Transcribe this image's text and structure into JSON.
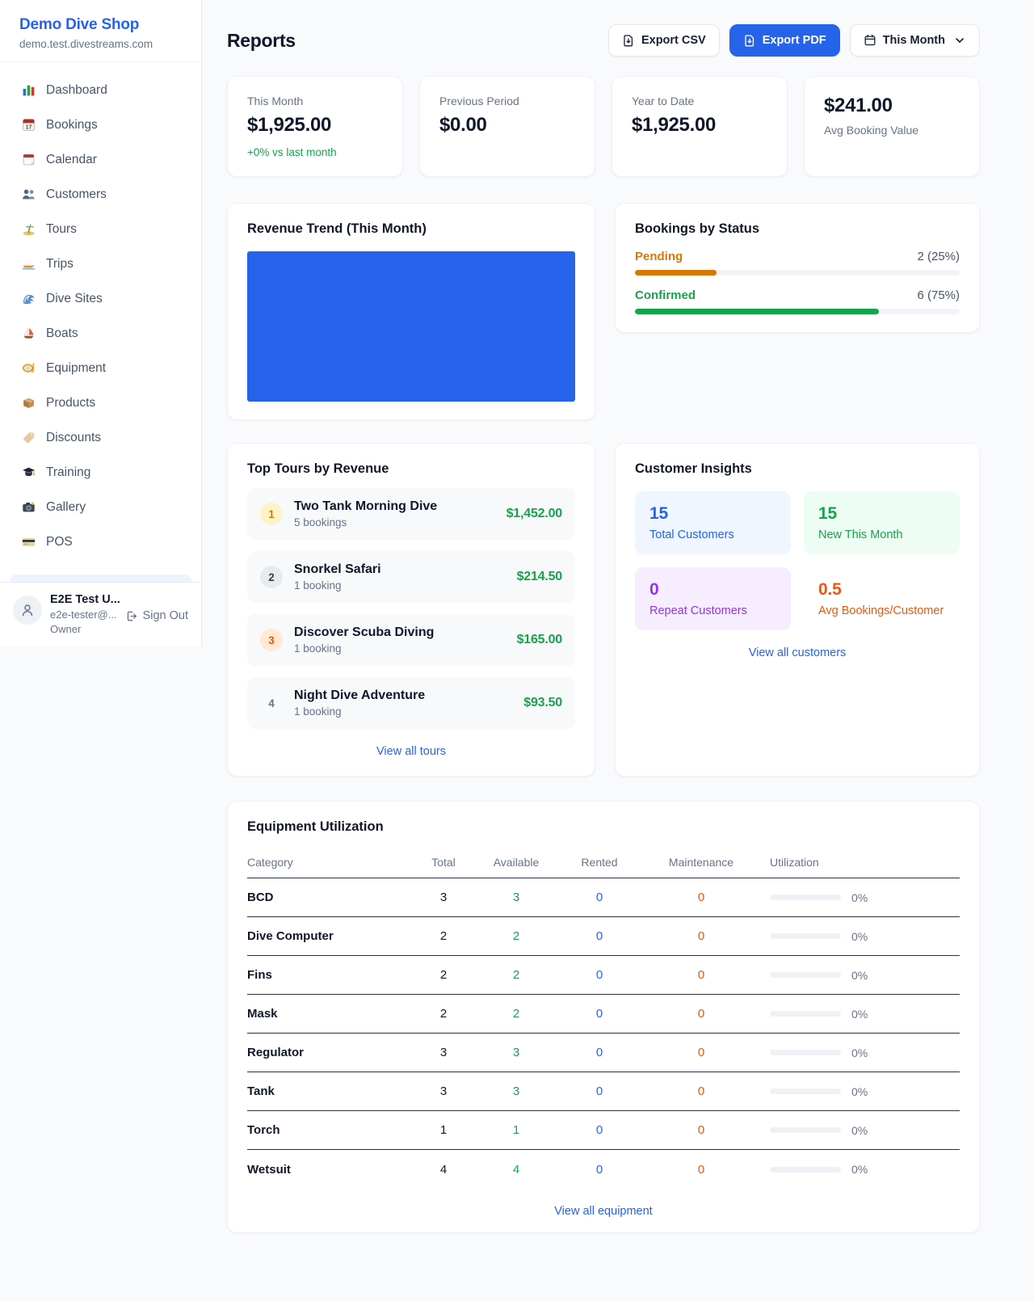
{
  "colors": {
    "accent_blue": "#2563eb",
    "green": "#16a34a",
    "amber": "#d97706",
    "deep_orange": "#ea580c",
    "purple": "#9333ea",
    "revenue_bar": "#2563eb"
  },
  "sidebar": {
    "brand": "Demo Dive Shop",
    "domain": "demo.test.divestreams.com",
    "items": [
      {
        "icon": "dashboard-icon",
        "label": "Dashboard"
      },
      {
        "icon": "bookings-icon",
        "label": "Bookings"
      },
      {
        "icon": "calendar-icon",
        "label": "Calendar"
      },
      {
        "icon": "customers-icon",
        "label": "Customers"
      },
      {
        "icon": "tours-icon",
        "label": "Tours"
      },
      {
        "icon": "trips-icon",
        "label": "Trips"
      },
      {
        "icon": "dive-sites-icon",
        "label": "Dive Sites"
      },
      {
        "icon": "boats-icon",
        "label": "Boats"
      },
      {
        "icon": "equipment-icon",
        "label": "Equipment"
      },
      {
        "icon": "products-icon",
        "label": "Products"
      },
      {
        "icon": "discounts-icon",
        "label": "Discounts"
      },
      {
        "icon": "training-icon",
        "label": "Training"
      },
      {
        "icon": "gallery-icon",
        "label": "Gallery"
      },
      {
        "icon": "pos-icon",
        "label": "POS"
      }
    ],
    "user": {
      "name": "E2E Test U...",
      "email": "e2e-tester@...",
      "role": "Owner",
      "signout_label": "Sign Out"
    }
  },
  "header": {
    "title": "Reports",
    "export_csv_label": "Export CSV",
    "export_pdf_label": "Export PDF",
    "period_label": "This Month"
  },
  "stats": [
    {
      "label": "This Month",
      "value": "$1,925.00",
      "delta": "+0% vs last month"
    },
    {
      "label": "Previous Period",
      "value": "$0.00"
    },
    {
      "label": "Year to Date",
      "value": "$1,925.00"
    },
    {
      "label": "Avg Booking Value",
      "value": "$241.00",
      "value_first": true
    }
  ],
  "revenue_trend": {
    "title": "Revenue Trend (This Month)"
  },
  "bookings_by_status": {
    "title": "Bookings by Status",
    "rows": [
      {
        "label": "Pending",
        "value": "2 (25%)",
        "pct": 25,
        "color": "#d97706"
      },
      {
        "label": "Confirmed",
        "value": "6 (75%)",
        "pct": 75,
        "color": "#16a34a"
      }
    ]
  },
  "top_tours": {
    "title": "Top Tours by Revenue",
    "link_label": "View all tours",
    "rows": [
      {
        "rank": "1",
        "name": "Two Tank Morning Dive",
        "bookings": "5 bookings",
        "revenue": "$1,452.00",
        "badge_bg": "#fdf3c8",
        "badge_color": "#d97706"
      },
      {
        "rank": "2",
        "name": "Snorkel Safari",
        "bookings": "1 booking",
        "revenue": "$214.50",
        "badge_bg": "#e8eaee",
        "badge_color": "#334155"
      },
      {
        "rank": "3",
        "name": "Discover Scuba Diving",
        "bookings": "1 booking",
        "revenue": "$165.00",
        "badge_bg": "#ffe9d5",
        "badge_color": "#ea580c"
      },
      {
        "rank": "4",
        "name": "Night Dive Adventure",
        "bookings": "1 booking",
        "revenue": "$93.50",
        "badge_bg": "transparent",
        "badge_color": "#64748b"
      }
    ]
  },
  "customer_insights": {
    "title": "Customer Insights",
    "link_label": "View all customers",
    "tiles": [
      {
        "value": "15",
        "label": "Total Customers",
        "bg": "#eff6ff",
        "color": "#2563eb"
      },
      {
        "value": "15",
        "label": "New This Month",
        "bg": "#eefdf3",
        "color": "#16a34a"
      },
      {
        "value": "0",
        "label": "Repeat Customers",
        "bg": "#f6eefe",
        "color": "#9333ea"
      },
      {
        "value": "0.5",
        "label": "Avg Bookings/Customer",
        "bg": "#fdeata",
        "color": "#ea580c"
      }
    ]
  },
  "equipment": {
    "title": "Equipment Utilization",
    "link_label": "View all equipment",
    "columns": [
      "Category",
      "Total",
      "Available",
      "Rented",
      "Maintenance",
      "Utilization"
    ],
    "rows": [
      {
        "category": "BCD",
        "total": "3",
        "available": "3",
        "rented": "0",
        "maintenance": "0",
        "utilization": "0%",
        "pct": 0
      },
      {
        "category": "Dive Computer",
        "total": "2",
        "available": "2",
        "rented": "0",
        "maintenance": "0",
        "utilization": "0%",
        "pct": 0
      },
      {
        "category": "Fins",
        "total": "2",
        "available": "2",
        "rented": "0",
        "maintenance": "0",
        "utilization": "0%",
        "pct": 0
      },
      {
        "category": "Mask",
        "total": "2",
        "available": "2",
        "rented": "0",
        "maintenance": "0",
        "utilization": "0%",
        "pct": 0
      },
      {
        "category": "Regulator",
        "total": "3",
        "available": "3",
        "rented": "0",
        "maintenance": "0",
        "utilization": "0%",
        "pct": 0
      },
      {
        "category": "Tank",
        "total": "3",
        "available": "3",
        "rented": "0",
        "maintenance": "0",
        "utilization": "0%",
        "pct": 0
      },
      {
        "category": "Torch",
        "total": "1",
        "available": "1",
        "rented": "0",
        "maintenance": "0",
        "utilization": "0%",
        "pct": 0
      },
      {
        "category": "Wetsuit",
        "total": "4",
        "available": "4",
        "rented": "0",
        "maintenance": "0",
        "utilization": "0%",
        "pct": 0
      }
    ]
  }
}
